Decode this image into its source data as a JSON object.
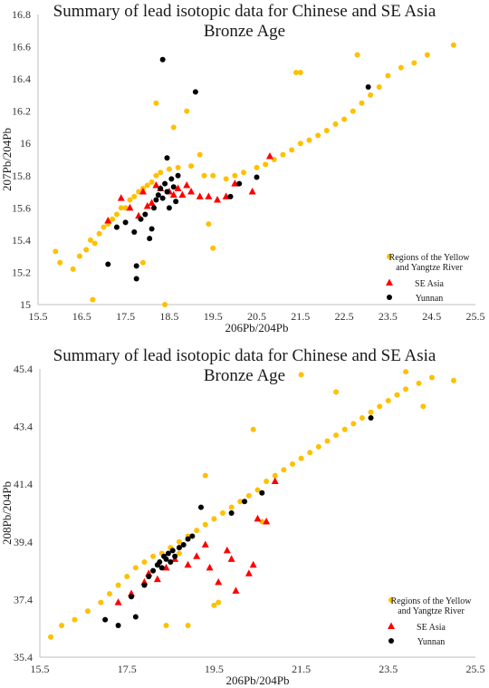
{
  "colors": {
    "regions": "#ffc000",
    "se_asia": "#ff0000",
    "yunnan": "#000000",
    "axis": "#bfbfbf"
  },
  "chart_data": [
    {
      "type": "scatter",
      "title_line1": "Summary of lead isotopic data for Chinese and SE Asia",
      "title_line2": "Bronze Age",
      "xlabel": "206Pb/204Pb",
      "ylabel": "207Pb/204Pb",
      "xlim": [
        15.5,
        25.5
      ],
      "ylim": [
        15,
        16.8
      ],
      "x_ticks": [
        "15.5",
        "16.5",
        "17.5",
        "18.5",
        "19.5",
        "20.5",
        "21.5",
        "22.5",
        "23.5",
        "24.5",
        "25.5"
      ],
      "y_ticks": [
        "15",
        "15.2",
        "15.4",
        "15.6",
        "15.8",
        "16",
        "16.2",
        "16.4",
        "16.6",
        "16.8"
      ],
      "legend": [
        "Regions of the Yellow",
        "and Yangtze River",
        "SE Asia",
        "Yunnan"
      ],
      "series": [
        {
          "name": "Regions of the Yellow and Yangtze River",
          "marker": "circle",
          "points": [
            [
              15.9,
              15.33
            ],
            [
              16.0,
              15.26
            ],
            [
              16.3,
              15.22
            ],
            [
              16.45,
              15.3
            ],
            [
              16.6,
              15.34
            ],
            [
              16.7,
              15.4
            ],
            [
              16.8,
              15.38
            ],
            [
              16.9,
              15.44
            ],
            [
              17.0,
              15.48
            ],
            [
              17.1,
              15.5
            ],
            [
              17.2,
              15.53
            ],
            [
              17.3,
              15.56
            ],
            [
              17.4,
              15.6
            ],
            [
              17.5,
              15.6
            ],
            [
              17.6,
              15.65
            ],
            [
              17.7,
              15.67
            ],
            [
              17.8,
              15.7
            ],
            [
              17.9,
              15.72
            ],
            [
              18.0,
              15.74
            ],
            [
              18.1,
              15.76
            ],
            [
              18.2,
              15.8
            ],
            [
              18.3,
              15.82
            ],
            [
              18.5,
              15.84
            ],
            [
              18.7,
              15.85
            ],
            [
              19.0,
              15.86
            ],
            [
              19.3,
              15.8
            ],
            [
              19.5,
              15.8
            ],
            [
              19.8,
              15.78
            ],
            [
              20.0,
              15.8
            ],
            [
              20.2,
              15.82
            ],
            [
              20.5,
              15.85
            ],
            [
              20.7,
              15.87
            ],
            [
              20.9,
              15.9
            ],
            [
              21.1,
              15.93
            ],
            [
              21.3,
              15.96
            ],
            [
              21.5,
              16.0
            ],
            [
              21.7,
              16.02
            ],
            [
              21.9,
              16.05
            ],
            [
              22.1,
              16.08
            ],
            [
              22.3,
              16.12
            ],
            [
              22.5,
              16.15
            ],
            [
              22.7,
              16.2
            ],
            [
              22.9,
              16.25
            ],
            [
              23.1,
              16.3
            ],
            [
              23.3,
              16.35
            ],
            [
              23.5,
              16.42
            ],
            [
              23.8,
              16.47
            ],
            [
              24.1,
              16.5
            ],
            [
              24.4,
              16.55
            ],
            [
              25.0,
              16.61
            ],
            [
              18.4,
              15.0
            ],
            [
              16.75,
              15.03
            ],
            [
              17.9,
              15.26
            ],
            [
              19.5,
              15.35
            ],
            [
              19.4,
              15.5
            ],
            [
              18.6,
              16.1
            ],
            [
              18.9,
              16.2
            ],
            [
              19.2,
              15.93
            ],
            [
              21.4,
              16.44
            ],
            [
              21.5,
              16.44
            ],
            [
              22.8,
              16.55
            ],
            [
              18.2,
              16.25
            ]
          ]
        },
        {
          "name": "SE Asia",
          "marker": "triangle",
          "points": [
            [
              17.1,
              15.52
            ],
            [
              17.4,
              15.66
            ],
            [
              17.6,
              15.6
            ],
            [
              17.8,
              15.55
            ],
            [
              17.9,
              15.7
            ],
            [
              18.0,
              15.61
            ],
            [
              18.1,
              15.63
            ],
            [
              18.2,
              15.74
            ],
            [
              18.3,
              15.72
            ],
            [
              18.5,
              15.7
            ],
            [
              18.6,
              15.68
            ],
            [
              18.7,
              15.72
            ],
            [
              18.8,
              15.68
            ],
            [
              18.9,
              15.74
            ],
            [
              19.0,
              15.7
            ],
            [
              19.2,
              15.67
            ],
            [
              19.4,
              15.67
            ],
            [
              19.6,
              15.65
            ],
            [
              19.8,
              15.67
            ],
            [
              20.0,
              15.75
            ],
            [
              20.4,
              15.7
            ],
            [
              20.8,
              15.92
            ]
          ]
        },
        {
          "name": "Yunnan",
          "marker": "circle",
          "points": [
            [
              18.35,
              16.52
            ],
            [
              19.1,
              16.32
            ],
            [
              17.1,
              15.25
            ],
            [
              17.75,
              15.24
            ],
            [
              17.75,
              15.16
            ],
            [
              17.3,
              15.48
            ],
            [
              17.5,
              15.51
            ],
            [
              17.7,
              15.45
            ],
            [
              17.85,
              15.53
            ],
            [
              17.95,
              15.56
            ],
            [
              18.05,
              15.41
            ],
            [
              18.1,
              15.47
            ],
            [
              18.15,
              15.6
            ],
            [
              18.2,
              15.65
            ],
            [
              18.25,
              15.68
            ],
            [
              18.3,
              15.72
            ],
            [
              18.35,
              15.66
            ],
            [
              18.4,
              15.75
            ],
            [
              18.45,
              15.7
            ],
            [
              18.5,
              15.6
            ],
            [
              18.55,
              15.78
            ],
            [
              18.6,
              15.73
            ],
            [
              18.65,
              15.64
            ],
            [
              18.7,
              15.8
            ],
            [
              18.45,
              15.91
            ],
            [
              19.9,
              15.67
            ],
            [
              20.1,
              15.75
            ],
            [
              20.5,
              15.79
            ],
            [
              23.05,
              16.35
            ]
          ]
        }
      ]
    },
    {
      "type": "scatter",
      "title_line1": "Summary of lead isotopic data for Chinese and SE Asia",
      "title_line2": "Bronze Age",
      "xlabel": "206Pb/204Pb",
      "ylabel": "208Pb/204Pb",
      "xlim": [
        15.5,
        25.5
      ],
      "ylim": [
        35.4,
        45.4
      ],
      "x_ticks": [
        "15.5",
        "17.5",
        "19.5",
        "21.5",
        "23.5",
        "25.5"
      ],
      "y_ticks": [
        "35.4",
        "37.4",
        "39.4",
        "41.4",
        "43.4",
        "45.4"
      ],
      "legend": [
        "Regions of the Yellow",
        "and Yangtze River",
        "SE Asia",
        "Yunnan"
      ],
      "series": [
        {
          "name": "Regions of the Yellow and Yangtze River",
          "marker": "circle",
          "points": [
            [
              15.75,
              36.1
            ],
            [
              16.0,
              36.5
            ],
            [
              16.3,
              36.7
            ],
            [
              16.6,
              37.0
            ],
            [
              16.9,
              37.3
            ],
            [
              17.1,
              37.6
            ],
            [
              17.3,
              37.9
            ],
            [
              17.5,
              38.2
            ],
            [
              17.7,
              38.5
            ],
            [
              17.9,
              38.7
            ],
            [
              18.1,
              38.9
            ],
            [
              18.3,
              39.0
            ],
            [
              18.5,
              39.2
            ],
            [
              18.7,
              39.4
            ],
            [
              18.9,
              39.6
            ],
            [
              19.1,
              39.8
            ],
            [
              19.3,
              40.0
            ],
            [
              19.5,
              40.2
            ],
            [
              19.7,
              40.4
            ],
            [
              19.9,
              40.6
            ],
            [
              20.1,
              40.8
            ],
            [
              20.3,
              41.0
            ],
            [
              20.5,
              41.2
            ],
            [
              20.7,
              41.5
            ],
            [
              20.9,
              41.7
            ],
            [
              21.1,
              41.9
            ],
            [
              21.3,
              42.1
            ],
            [
              21.5,
              42.3
            ],
            [
              21.7,
              42.5
            ],
            [
              21.9,
              42.7
            ],
            [
              22.1,
              42.9
            ],
            [
              22.3,
              43.1
            ],
            [
              22.5,
              43.3
            ],
            [
              22.7,
              43.5
            ],
            [
              22.9,
              43.7
            ],
            [
              23.1,
              43.9
            ],
            [
              23.3,
              44.1
            ],
            [
              23.5,
              44.3
            ],
            [
              23.7,
              44.5
            ],
            [
              23.9,
              44.7
            ],
            [
              24.2,
              44.9
            ],
            [
              24.5,
              45.1
            ],
            [
              25.0,
              45.0
            ],
            [
              21.5,
              45.2
            ],
            [
              23.9,
              45.3
            ],
            [
              22.3,
              44.6
            ],
            [
              24.3,
              44.1
            ],
            [
              20.4,
              43.3
            ],
            [
              19.3,
              41.7
            ],
            [
              18.9,
              36.5
            ],
            [
              18.4,
              36.5
            ],
            [
              19.6,
              37.3
            ],
            [
              19.5,
              37.2
            ],
            [
              18.7,
              39.0
            ],
            [
              20.6,
              40.1
            ]
          ]
        },
        {
          "name": "SE Asia",
          "marker": "triangle",
          "points": [
            [
              17.3,
              37.3
            ],
            [
              17.6,
              37.6
            ],
            [
              17.9,
              38.0
            ],
            [
              18.0,
              38.3
            ],
            [
              18.2,
              38.1
            ],
            [
              18.4,
              38.5
            ],
            [
              18.6,
              38.8
            ],
            [
              18.9,
              38.6
            ],
            [
              19.1,
              38.9
            ],
            [
              19.3,
              39.3
            ],
            [
              19.4,
              38.5
            ],
            [
              19.6,
              38.0
            ],
            [
              19.8,
              39.1
            ],
            [
              19.9,
              38.8
            ],
            [
              20.0,
              37.7
            ],
            [
              20.3,
              38.3
            ],
            [
              20.4,
              38.6
            ],
            [
              20.5,
              40.2
            ],
            [
              20.7,
              40.1
            ],
            [
              20.9,
              41.5
            ]
          ]
        },
        {
          "name": "Yunnan",
          "marker": "circle",
          "points": [
            [
              17.0,
              36.7
            ],
            [
              17.3,
              36.5
            ],
            [
              17.7,
              36.8
            ],
            [
              17.6,
              37.5
            ],
            [
              17.9,
              37.9
            ],
            [
              18.0,
              38.2
            ],
            [
              18.1,
              38.4
            ],
            [
              18.2,
              38.6
            ],
            [
              18.25,
              38.7
            ],
            [
              18.3,
              38.5
            ],
            [
              18.35,
              38.9
            ],
            [
              18.4,
              38.8
            ],
            [
              18.45,
              39.0
            ],
            [
              18.5,
              38.7
            ],
            [
              18.55,
              39.1
            ],
            [
              18.6,
              38.9
            ],
            [
              18.7,
              39.2
            ],
            [
              18.8,
              39.3
            ],
            [
              18.9,
              39.5
            ],
            [
              19.0,
              39.6
            ],
            [
              19.2,
              40.6
            ],
            [
              19.9,
              40.4
            ],
            [
              20.2,
              40.8
            ],
            [
              20.6,
              41.1
            ],
            [
              23.1,
              43.7
            ]
          ]
        }
      ]
    }
  ]
}
